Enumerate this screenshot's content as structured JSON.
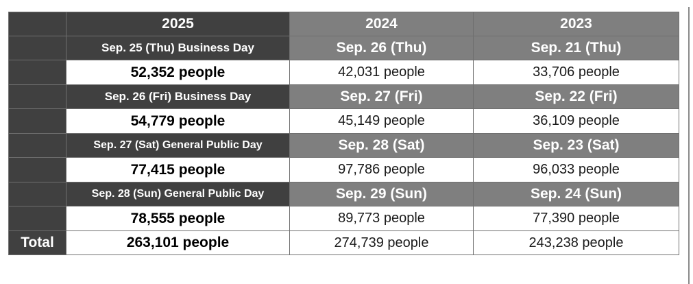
{
  "header": {
    "years": [
      "2025",
      "2024",
      "2023"
    ]
  },
  "days": [
    {
      "dates": [
        "Sep. 25 (Thu) Business Day",
        "Sep. 26 (Thu)",
        "Sep. 21 (Thu)"
      ],
      "counts": [
        "52,352 people",
        "42,031 people",
        "33,706 people"
      ]
    },
    {
      "dates": [
        "Sep. 26 (Fri) Business Day",
        "Sep. 27 (Fri)",
        "Sep. 22 (Fri)"
      ],
      "counts": [
        "54,779 people",
        "45,149 people",
        "36,109 people"
      ]
    },
    {
      "dates": [
        "Sep. 27 (Sat) General Public Day",
        "Sep. 28 (Sat)",
        "Sep. 23 (Sat)"
      ],
      "counts": [
        "77,415 people",
        "97,786 people",
        "96,033 people"
      ]
    },
    {
      "dates": [
        "Sep. 28 (Sun) General Public Day",
        "Sep. 29 (Sun)",
        "Sep. 24 (Sun)"
      ],
      "counts": [
        "78,555 people",
        "89,773 people",
        "77,390 people"
      ]
    }
  ],
  "total": {
    "label": "Total",
    "counts": [
      "263,101 people",
      "274,739 people",
      "243,238 people"
    ]
  },
  "colors": {
    "dark_header": "#404040",
    "gray_header": "#7f7f7f",
    "border": "#6f6f6f"
  }
}
